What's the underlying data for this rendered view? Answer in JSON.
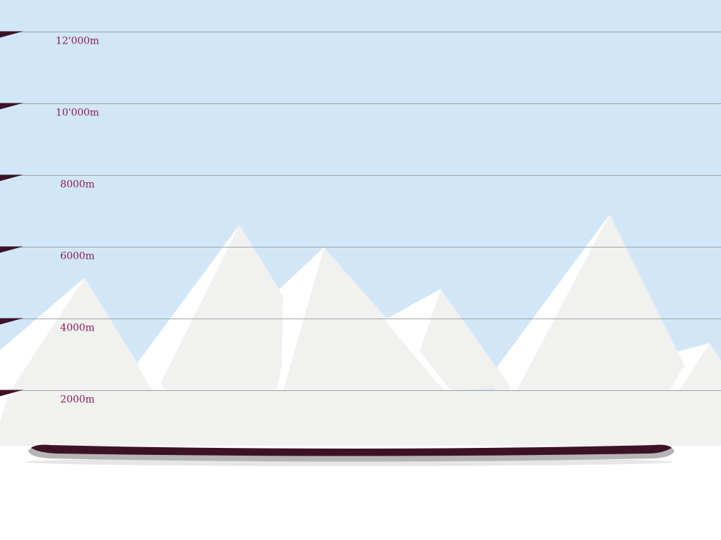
{
  "colors": {
    "sky": "#d1e7f7",
    "snow": "#f1f1f0",
    "highlight": "#ffffff",
    "gridline": "#9ea3a8",
    "label": "#8a1a58",
    "marker": "#3d1226",
    "board": "#3d1226",
    "board_shadow": "#b5b5b5"
  },
  "scale": {
    "units": "m",
    "levels": [
      {
        "value": 2000,
        "label": "2000m"
      },
      {
        "value": 4000,
        "label": "4000m"
      },
      {
        "value": 6000,
        "label": "6000m"
      },
      {
        "value": 8000,
        "label": "8000m"
      },
      {
        "value": 10000,
        "label": "10'000m"
      },
      {
        "value": 12000,
        "label": "12'000m"
      }
    ]
  },
  "peaks_m": [
    4700,
    6200,
    5600,
    4400,
    6600,
    2900
  ]
}
